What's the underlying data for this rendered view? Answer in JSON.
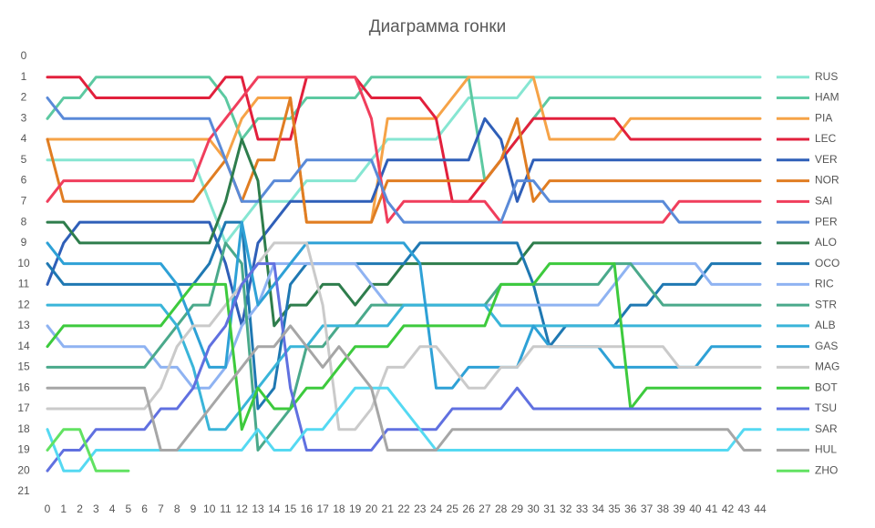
{
  "chart_data": {
    "type": "line",
    "title": "Диаграмма гонки",
    "x": [
      0,
      1,
      2,
      3,
      4,
      5,
      6,
      7,
      8,
      9,
      10,
      11,
      12,
      13,
      14,
      15,
      16,
      17,
      18,
      19,
      20,
      21,
      22,
      23,
      24,
      25,
      26,
      27,
      28,
      29,
      30,
      31,
      32,
      33,
      34,
      35,
      36,
      37,
      38,
      39,
      40,
      41,
      42,
      43,
      44
    ],
    "ylim": [
      0,
      21
    ],
    "yticks": [
      0,
      1,
      2,
      3,
      4,
      5,
      6,
      7,
      8,
      9,
      10,
      11,
      12,
      13,
      14,
      15,
      16,
      17,
      18,
      19,
      20,
      21
    ],
    "y_inverted": true,
    "grid": false,
    "legend": "right",
    "series": [
      {
        "name": "RUS",
        "color": "#86e6d2",
        "values": [
          5,
          5,
          5,
          5,
          5,
          5,
          5,
          5,
          5,
          5,
          7,
          9,
          8,
          7,
          7,
          7,
          6,
          6,
          6,
          6,
          5,
          4,
          4,
          4,
          4,
          3,
          2,
          2,
          2,
          2,
          1,
          1,
          1,
          1,
          1,
          1,
          1,
          1,
          1,
          1,
          1,
          1,
          1,
          1,
          1
        ]
      },
      {
        "name": "HAM",
        "color": "#5cc9a1",
        "values": [
          3,
          2,
          2,
          1,
          1,
          1,
          1,
          1,
          1,
          1,
          1,
          2,
          4,
          3,
          3,
          3,
          2,
          2,
          2,
          2,
          1,
          1,
          1,
          1,
          1,
          1,
          1,
          6,
          5,
          4,
          3,
          2,
          2,
          2,
          2,
          2,
          2,
          2,
          2,
          2,
          2,
          2,
          2,
          2,
          2
        ]
      },
      {
        "name": "PIA",
        "color": "#f6a347",
        "values": [
          4,
          4,
          4,
          4,
          4,
          4,
          4,
          4,
          4,
          4,
          4,
          5,
          3,
          2,
          2,
          2,
          8,
          8,
          8,
          8,
          8,
          3,
          3,
          3,
          3,
          2,
          1,
          1,
          1,
          1,
          1,
          4,
          4,
          4,
          4,
          4,
          3,
          3,
          3,
          3,
          3,
          3,
          3,
          3,
          3
        ]
      },
      {
        "name": "LEC",
        "color": "#e2203c",
        "values": [
          1,
          1,
          1,
          2,
          2,
          2,
          2,
          2,
          2,
          2,
          2,
          1,
          1,
          4,
          4,
          4,
          1,
          1,
          1,
          1,
          2,
          2,
          2,
          2,
          3,
          7,
          7,
          6,
          5,
          4,
          3,
          3,
          3,
          3,
          3,
          3,
          4,
          4,
          4,
          4,
          4,
          4,
          4,
          4,
          4
        ]
      },
      {
        "name": "VER",
        "color": "#2f5fb8",
        "values": [
          11,
          9,
          8,
          8,
          8,
          8,
          8,
          8,
          8,
          8,
          8,
          10,
          13,
          9,
          8,
          7,
          7,
          7,
          7,
          7,
          7,
          5,
          5,
          5,
          5,
          5,
          5,
          3,
          4,
          7,
          5,
          5,
          5,
          5,
          5,
          5,
          5,
          5,
          5,
          5,
          5,
          5,
          5,
          5,
          5
        ]
      },
      {
        "name": "NOR",
        "color": "#e07d22",
        "values": [
          4,
          7,
          7,
          7,
          7,
          7,
          7,
          7,
          7,
          7,
          6,
          5,
          7,
          5,
          5,
          2,
          8,
          8,
          8,
          8,
          8,
          6,
          6,
          6,
          6,
          6,
          6,
          6,
          5,
          3,
          7,
          6,
          6,
          6,
          6,
          6,
          6,
          6,
          6,
          6,
          6,
          6,
          6,
          6,
          6
        ]
      },
      {
        "name": "SAI",
        "color": "#f03e5c",
        "values": [
          7,
          6,
          6,
          6,
          6,
          6,
          6,
          6,
          6,
          6,
          4,
          3,
          2,
          1,
          1,
          1,
          1,
          1,
          1,
          1,
          3,
          8,
          7,
          7,
          7,
          7,
          7,
          7,
          8,
          8,
          8,
          8,
          8,
          8,
          8,
          8,
          8,
          8,
          8,
          7,
          7,
          7,
          7,
          7,
          7
        ]
      },
      {
        "name": "PER",
        "color": "#5a8ad8",
        "values": [
          2,
          3,
          3,
          3,
          3,
          3,
          3,
          3,
          3,
          3,
          3,
          5,
          7,
          7,
          6,
          6,
          5,
          5,
          5,
          5,
          5,
          7,
          8,
          8,
          8,
          8,
          8,
          8,
          8,
          6,
          6,
          7,
          7,
          7,
          7,
          7,
          7,
          7,
          7,
          8,
          8,
          8,
          8,
          8,
          8
        ]
      },
      {
        "name": "ALO",
        "color": "#2e7d4c",
        "values": [
          8,
          8,
          9,
          9,
          9,
          9,
          9,
          9,
          9,
          9,
          9,
          7,
          4,
          6,
          13,
          12,
          12,
          11,
          11,
          12,
          11,
          11,
          10,
          10,
          10,
          10,
          10,
          10,
          10,
          10,
          9,
          9,
          9,
          9,
          9,
          9,
          9,
          9,
          9,
          9,
          9,
          9,
          9,
          9,
          9
        ]
      },
      {
        "name": "OCO",
        "color": "#1f78b2",
        "values": [
          10,
          11,
          11,
          11,
          11,
          11,
          11,
          11,
          11,
          11,
          10,
          8,
          8,
          17,
          16,
          11,
          10,
          10,
          10,
          10,
          10,
          10,
          10,
          9,
          9,
          9,
          9,
          9,
          9,
          9,
          11,
          14,
          13,
          13,
          13,
          13,
          12,
          12,
          11,
          11,
          11,
          10,
          10,
          10,
          10
        ]
      },
      {
        "name": "RIC",
        "color": "#8fb3f2",
        "values": [
          13,
          14,
          14,
          14,
          14,
          14,
          14,
          15,
          15,
          16,
          16,
          15,
          13,
          12,
          10,
          10,
          10,
          10,
          10,
          10,
          11,
          12,
          12,
          12,
          12,
          12,
          12,
          12,
          12,
          12,
          12,
          12,
          12,
          12,
          12,
          11,
          10,
          10,
          10,
          10,
          10,
          11,
          11,
          11,
          11
        ]
      },
      {
        "name": "STR",
        "color": "#4aa98b",
        "values": [
          15,
          15,
          15,
          15,
          15,
          15,
          15,
          14,
          13,
          12,
          12,
          9,
          10,
          19,
          18,
          17,
          14,
          14,
          13,
          13,
          12,
          12,
          12,
          12,
          12,
          12,
          12,
          12,
          11,
          11,
          11,
          11,
          11,
          11,
          11,
          10,
          10,
          11,
          12,
          12,
          12,
          12,
          12,
          12,
          12
        ]
      },
      {
        "name": "ALB",
        "color": "#3ab5d9",
        "values": [
          12,
          12,
          12,
          12,
          12,
          12,
          12,
          12,
          13,
          15,
          18,
          18,
          17,
          16,
          15,
          14,
          14,
          13,
          13,
          13,
          13,
          13,
          12,
          12,
          12,
          12,
          12,
          12,
          13,
          13,
          13,
          13,
          13,
          13,
          13,
          13,
          13,
          13,
          13,
          13,
          13,
          13,
          13,
          13,
          13
        ]
      },
      {
        "name": "GAS",
        "color": "#2ea1d6",
        "values": [
          9,
          10,
          10,
          10,
          10,
          10,
          10,
          10,
          11,
          13,
          15,
          15,
          8,
          12,
          11,
          10,
          9,
          9,
          9,
          9,
          9,
          9,
          9,
          10,
          16,
          16,
          15,
          15,
          15,
          15,
          13,
          14,
          14,
          14,
          14,
          15,
          15,
          15,
          15,
          15,
          15,
          14,
          14,
          14,
          14
        ]
      },
      {
        "name": "MAG",
        "color": "#cacaca",
        "values": [
          17,
          17,
          17,
          17,
          17,
          17,
          17,
          16,
          14,
          13,
          13,
          12,
          11,
          10,
          9,
          9,
          9,
          12,
          18,
          18,
          17,
          15,
          15,
          14,
          14,
          15,
          16,
          16,
          15,
          15,
          14,
          14,
          14,
          14,
          14,
          14,
          14,
          14,
          14,
          15,
          15,
          15,
          15,
          15,
          15
        ]
      },
      {
        "name": "BOT",
        "color": "#3dca3d",
        "values": [
          14,
          13,
          13,
          13,
          13,
          13,
          13,
          13,
          12,
          11,
          11,
          11,
          18,
          16,
          17,
          17,
          16,
          16,
          15,
          14,
          14,
          14,
          13,
          13,
          13,
          13,
          13,
          13,
          11,
          11,
          11,
          10,
          10,
          10,
          10,
          10,
          17,
          16,
          16,
          16,
          16,
          16,
          16,
          16,
          16
        ]
      },
      {
        "name": "TSU",
        "color": "#6070e0",
        "values": [
          20,
          19,
          19,
          18,
          18,
          18,
          18,
          17,
          17,
          16,
          14,
          13,
          11,
          10,
          10,
          16,
          19,
          19,
          19,
          19,
          19,
          18,
          18,
          18,
          18,
          17,
          17,
          17,
          17,
          16,
          17,
          17,
          17,
          17,
          17,
          17,
          17,
          17,
          17,
          17,
          17,
          17,
          17,
          17,
          17
        ]
      },
      {
        "name": "SAR",
        "color": "#55d9f2",
        "values": [
          18,
          20,
          20,
          19,
          19,
          19,
          19,
          19,
          19,
          19,
          19,
          19,
          19,
          18,
          19,
          19,
          18,
          18,
          17,
          16,
          16,
          16,
          17,
          18,
          19,
          19,
          19,
          19,
          19,
          19,
          19,
          19,
          19,
          19,
          19,
          19,
          19,
          19,
          19,
          19,
          19,
          19,
          19,
          18,
          18
        ]
      },
      {
        "name": "HUL",
        "color": "#a6a6a6",
        "values": [
          16,
          16,
          16,
          16,
          16,
          16,
          16,
          19,
          19,
          18,
          17,
          16,
          15,
          14,
          14,
          13,
          14,
          15,
          14,
          15,
          16,
          19,
          19,
          19,
          19,
          18,
          18,
          18,
          18,
          18,
          18,
          18,
          18,
          18,
          18,
          18,
          18,
          18,
          18,
          18,
          18,
          18,
          18,
          19,
          19
        ]
      },
      {
        "name": "ZHO",
        "color": "#62e262",
        "values": [
          19,
          18,
          18,
          20,
          20,
          20,
          null,
          null,
          null,
          null,
          null,
          null,
          null,
          null,
          null,
          null,
          null,
          null,
          null,
          null,
          null,
          null,
          null,
          null,
          null,
          null,
          null,
          null,
          null,
          null,
          null,
          null,
          null,
          null,
          null,
          null,
          null,
          null,
          null,
          null,
          null,
          null,
          null,
          null,
          null
        ]
      }
    ]
  }
}
